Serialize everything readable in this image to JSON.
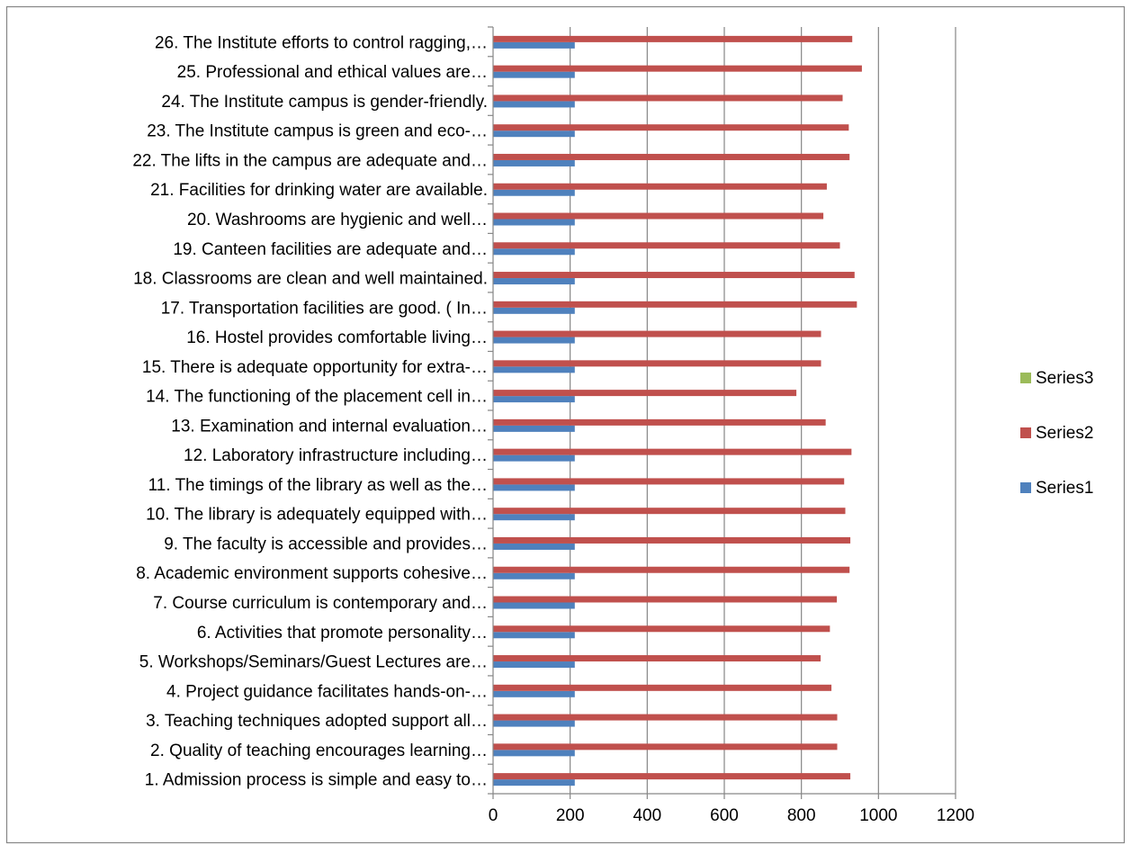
{
  "chart_data": {
    "type": "bar",
    "orientation": "horizontal",
    "title": "",
    "xlabel": "",
    "ylabel": "",
    "xlim": [
      0,
      1200
    ],
    "x_ticks": [
      "0",
      "200",
      "400",
      "600",
      "800",
      "1000",
      "1200"
    ],
    "grid": "vertical",
    "legend": "right",
    "categories": [
      "1. Admission process is simple and easy to…",
      "2. Quality of teaching encourages learning…",
      "3. Teaching techniques adopted support all…",
      "4. Project guidance facilitates hands-on-…",
      "5. Workshops/Seminars/Guest Lectures are…",
      "6. Activities that promote personality…",
      "7. Course curriculum is contemporary and…",
      "8. Academic environment supports cohesive…",
      "9. The faculty is accessible and provides…",
      "10. The library is adequately equipped with…",
      "11. The timings of the library as well as the…",
      "12. Laboratory infrastructure including…",
      "13. Examination and internal evaluation…",
      "14. The functioning of the placement cell in…",
      "15. There is adequate opportunity for extra-…",
      "16. Hostel provides comfortable living…",
      "17. Transportation facilities are good. ( In…",
      "18. Classrooms are clean and well maintained.",
      "19. Canteen facilities are adequate and…",
      "20. Washrooms are hygienic and well…",
      "21. Facilities for drinking water are available.",
      "22. The lifts in the campus are adequate and…",
      "23. The Institute campus is green and eco-…",
      "24. The Institute campus is gender-friendly.",
      "25. Professional and ethical values are…",
      "26. The Institute efforts to control ragging,…"
    ],
    "series": [
      {
        "name": "Series1",
        "color": "#4f81bd",
        "values": [
          212,
          212,
          212,
          212,
          212,
          212,
          212,
          212,
          212,
          212,
          212,
          212,
          212,
          212,
          212,
          212,
          212,
          212,
          212,
          212,
          212,
          212,
          212,
          212,
          212,
          212
        ]
      },
      {
        "name": "Series2",
        "color": "#c0504d",
        "values": [
          927,
          893,
          893,
          878,
          850,
          874,
          892,
          925,
          927,
          914,
          911,
          930,
          863,
          787,
          851,
          851,
          944,
          938,
          900,
          857,
          866,
          925,
          923,
          907,
          957,
          932
        ]
      },
      {
        "name": "Series3",
        "color": "#9bbb59",
        "values": [
          0,
          0,
          0,
          0,
          0,
          0,
          0,
          0,
          0,
          0,
          0,
          0,
          0,
          0,
          0,
          0,
          0,
          0,
          0,
          0,
          0,
          0,
          0,
          0,
          0,
          0
        ]
      }
    ],
    "legend_order": [
      "Series3",
      "Series2",
      "Series1"
    ]
  }
}
